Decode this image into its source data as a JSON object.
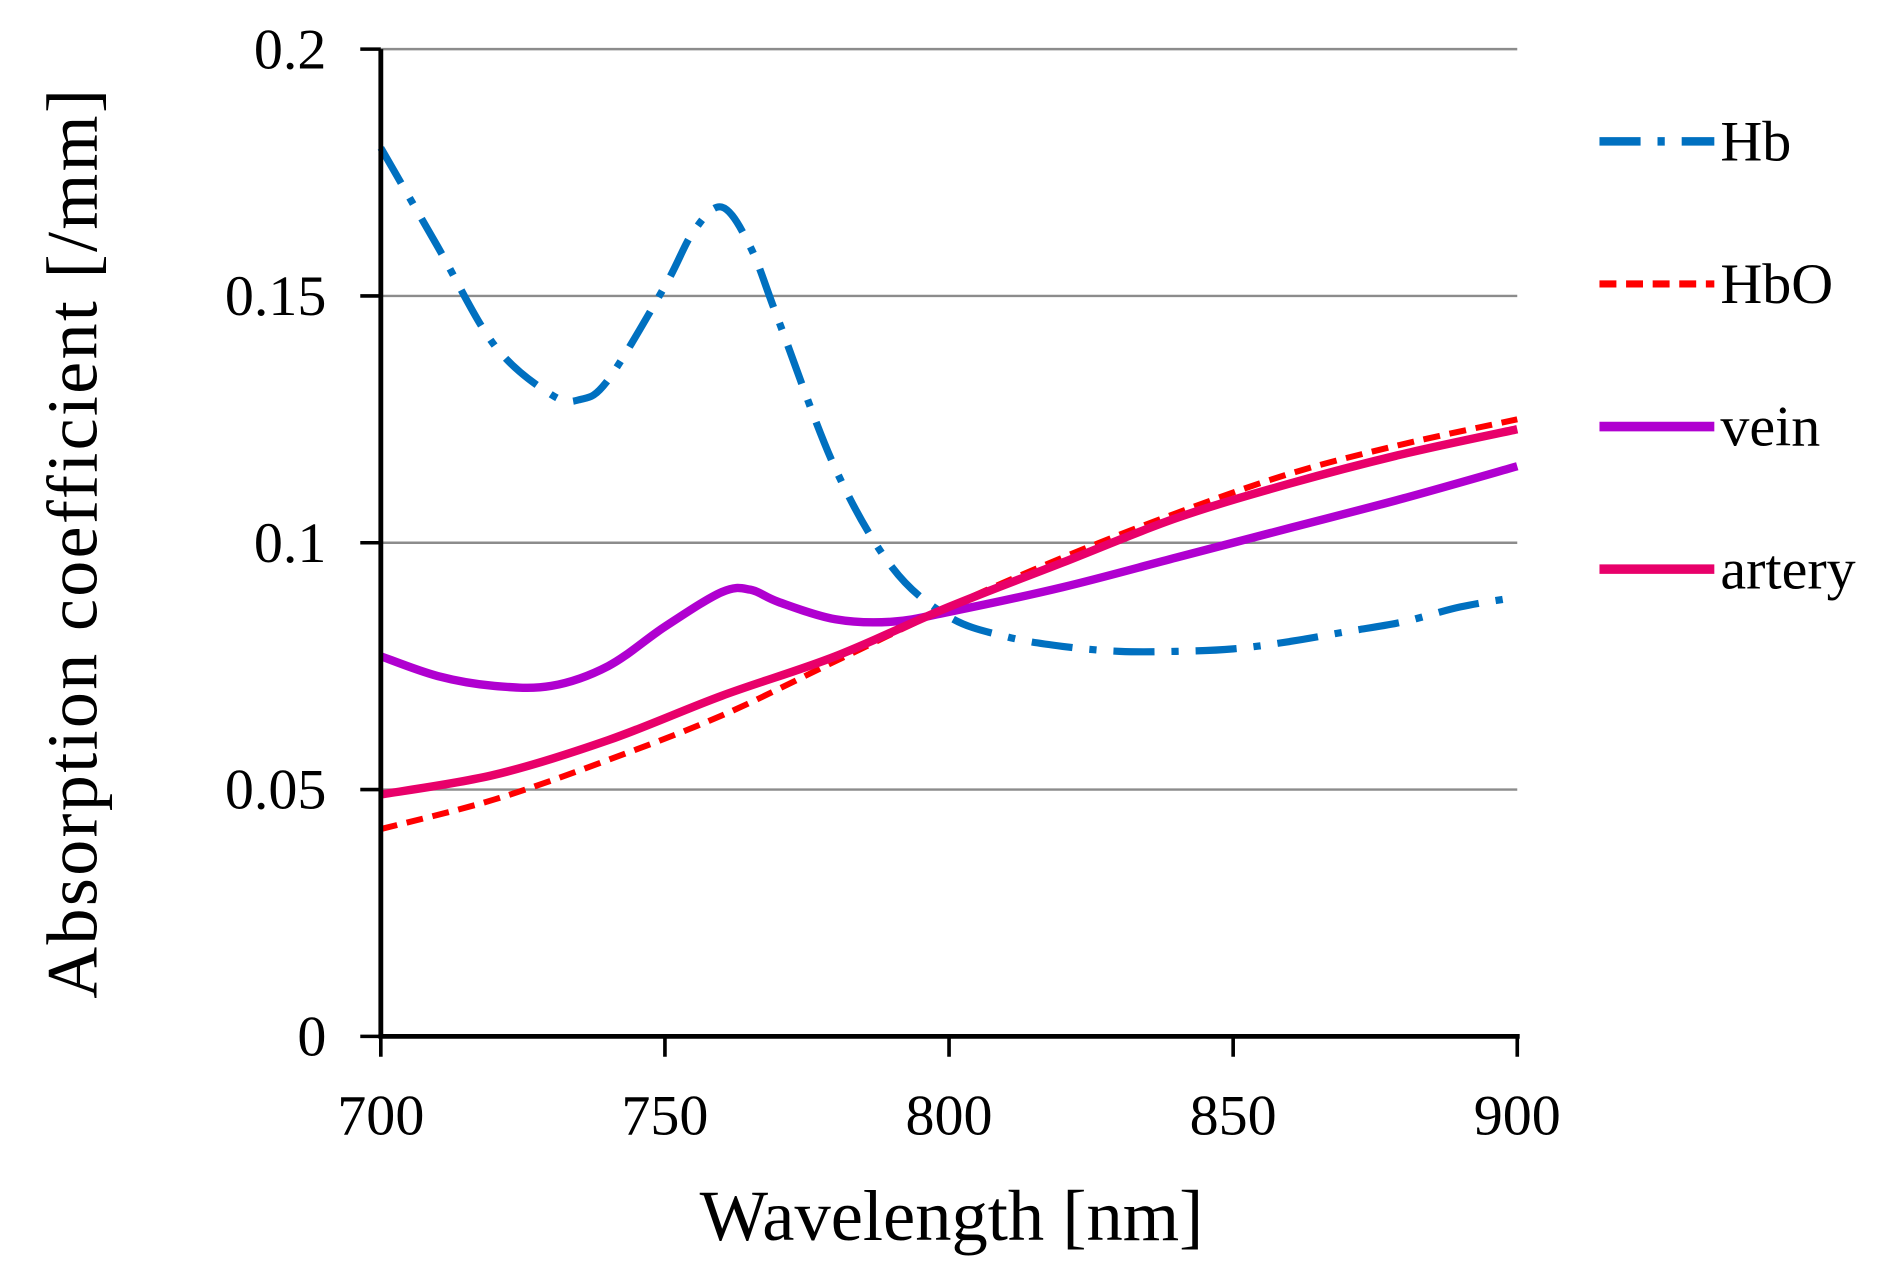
{
  "chart_data": {
    "type": "line",
    "title": "",
    "xlabel": "Wavelength [nm]",
    "ylabel": "Absorption coefficient [/mm]",
    "xlim": [
      700,
      900
    ],
    "ylim": [
      0,
      0.2
    ],
    "xticks": [
      "700",
      "750",
      "800",
      "850",
      "900"
    ],
    "xtick_values": [
      700,
      750,
      800,
      850,
      900
    ],
    "yticks": [
      "0",
      "0.05",
      "0.1",
      "0.15",
      "0.2"
    ],
    "ytick_values": [
      0,
      0.05,
      0.1,
      0.15,
      0.2
    ],
    "grid": "horizontal",
    "legend_position": "right",
    "series": [
      {
        "name": "Hb",
        "color": "#0070C0",
        "style": "dash-dot",
        "x": [
          700,
          710,
          720,
          730,
          735,
          740,
          750,
          755,
          760,
          765,
          770,
          780,
          790,
          800,
          810,
          820,
          830,
          840,
          850,
          860,
          870,
          880,
          890,
          900
        ],
        "y": [
          0.18,
          0.16,
          0.14,
          0.13,
          0.129,
          0.133,
          0.152,
          0.163,
          0.168,
          0.16,
          0.145,
          0.115,
          0.095,
          0.085,
          0.081,
          0.079,
          0.078,
          0.078,
          0.0785,
          0.08,
          0.082,
          0.084,
          0.087,
          0.089
        ]
      },
      {
        "name": "HbO",
        "color": "#FF0000",
        "style": "dash",
        "x": [
          700,
          720,
          740,
          760,
          780,
          800,
          820,
          840,
          860,
          880,
          900
        ],
        "y": [
          0.042,
          0.048,
          0.056,
          0.065,
          0.076,
          0.087,
          0.097,
          0.106,
          0.114,
          0.12,
          0.125
        ]
      },
      {
        "name": "vein",
        "color": "#B000D0",
        "style": "solid",
        "x": [
          700,
          710,
          720,
          730,
          740,
          750,
          760,
          765,
          770,
          780,
          790,
          800,
          820,
          840,
          860,
          880,
          900
        ],
        "y": [
          0.077,
          0.073,
          0.071,
          0.071,
          0.075,
          0.083,
          0.09,
          0.0905,
          0.088,
          0.0845,
          0.084,
          0.086,
          0.091,
          0.097,
          0.103,
          0.109,
          0.1155
        ]
      },
      {
        "name": "artery",
        "color": "#E8006A",
        "style": "solid",
        "x": [
          700,
          720,
          740,
          760,
          780,
          800,
          820,
          840,
          860,
          880,
          900
        ],
        "y": [
          0.049,
          0.053,
          0.06,
          0.069,
          0.077,
          0.087,
          0.096,
          0.105,
          0.112,
          0.118,
          0.123
        ]
      }
    ]
  }
}
